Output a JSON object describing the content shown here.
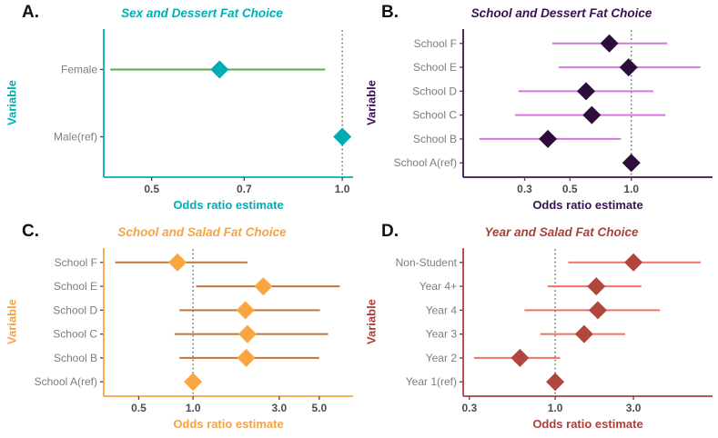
{
  "figure": {
    "background": "#ffffff"
  },
  "text_colors": {
    "panel_letter": "#111111",
    "category_label": "#7d7d7d",
    "tick_label": "#4d4d4d",
    "tick_mark": "#4a4a4a",
    "ref_line": "#6e6e6e"
  },
  "chart_data": [
    {
      "key": "a",
      "type": "scatter",
      "variant": "forest-plot-odds-ratio",
      "panel_label": "A.",
      "title": "Sex and Dessert Fat Choice",
      "xlabel": "Odds ratio estimate",
      "ylabel": "Variable",
      "x_scale": "log",
      "x_domain": [
        0.42,
        1.04
      ],
      "x_ticks": [
        0.5,
        0.7,
        1.0
      ],
      "ref_line_x": 1.0,
      "grid": false,
      "legend": "none",
      "colors": {
        "accent": "#00AFB6",
        "diamond": "#00ADB3",
        "ci": "#57AD4C",
        "axis": "#00AFB6"
      },
      "rows": [
        {
          "label": "Female",
          "or": 0.64,
          "ci_low": 0.43,
          "ci_high": 0.94,
          "is_ref": false
        },
        {
          "label": "Male(ref)",
          "or": 1.0,
          "ci_low": null,
          "ci_high": null,
          "is_ref": true
        }
      ]
    },
    {
      "key": "b",
      "type": "scatter",
      "variant": "forest-plot-odds-ratio",
      "panel_label": "B.",
      "title": "School and Dessert Fat Choice",
      "xlabel": "Odds ratio estimate",
      "ylabel": "Variable",
      "x_scale": "log",
      "x_domain": [
        0.15,
        2.5
      ],
      "x_ticks": [
        0.3,
        0.5,
        1.0
      ],
      "ref_line_x": 1.0,
      "grid": false,
      "legend": "none",
      "colors": {
        "accent": "#3A1150",
        "diamond": "#2E0D3D",
        "ci": "#D379DC",
        "axis": "#3A1150"
      },
      "rows": [
        {
          "label": "School F",
          "or": 0.78,
          "ci_low": 0.41,
          "ci_high": 1.5,
          "is_ref": false
        },
        {
          "label": "School E",
          "or": 0.97,
          "ci_low": 0.44,
          "ci_high": 2.18,
          "is_ref": false
        },
        {
          "label": "School D",
          "or": 0.6,
          "ci_low": 0.28,
          "ci_high": 1.28,
          "is_ref": false
        },
        {
          "label": "School C",
          "or": 0.64,
          "ci_low": 0.27,
          "ci_high": 1.47,
          "is_ref": false
        },
        {
          "label": "School B",
          "or": 0.39,
          "ci_low": 0.18,
          "ci_high": 0.89,
          "is_ref": false
        },
        {
          "label": "School A(ref)",
          "or": 1.0,
          "ci_low": null,
          "ci_high": null,
          "is_ref": true
        }
      ]
    },
    {
      "key": "c",
      "type": "scatter",
      "variant": "forest-plot-odds-ratio",
      "panel_label": "C.",
      "title": "School and Salad Fat Choice",
      "xlabel": "Odds ratio estimate",
      "ylabel": "Variable",
      "x_scale": "log",
      "x_domain": [
        0.32,
        7.7
      ],
      "x_ticks": [
        0.5,
        1.0,
        3.0,
        5.0
      ],
      "ref_line_x": 1.0,
      "grid": false,
      "legend": "none",
      "colors": {
        "accent": "#F9A242",
        "diamond": "#FAA53F",
        "ci": "#C3763B",
        "axis": "#F9A242"
      },
      "rows": [
        {
          "label": "School F",
          "or": 0.82,
          "ci_low": 0.37,
          "ci_high": 2.0,
          "is_ref": false
        },
        {
          "label": "School E",
          "or": 2.45,
          "ci_low": 1.04,
          "ci_high": 6.5,
          "is_ref": false
        },
        {
          "label": "School D",
          "or": 1.95,
          "ci_low": 0.84,
          "ci_high": 5.05,
          "is_ref": false
        },
        {
          "label": "School C",
          "or": 2.0,
          "ci_low": 0.79,
          "ci_high": 5.6,
          "is_ref": false
        },
        {
          "label": "School B",
          "or": 1.97,
          "ci_low": 0.84,
          "ci_high": 5.0,
          "is_ref": false
        },
        {
          "label": "School A(ref)",
          "or": 1.0,
          "ci_low": null,
          "ci_high": null,
          "is_ref": true
        }
      ]
    },
    {
      "key": "d",
      "type": "scatter",
      "variant": "forest-plot-odds-ratio",
      "panel_label": "D.",
      "title": "Year and Salad Fat Choice",
      "xlabel": "Odds ratio estimate",
      "ylabel": "Variable",
      "x_scale": "log",
      "x_domain": [
        0.275,
        9.1
      ],
      "x_ticks": [
        0.3,
        1.0,
        3.0
      ],
      "ref_line_x": 1.0,
      "grid": false,
      "legend": "none",
      "colors": {
        "accent": "#AC4039",
        "diamond": "#B2453D",
        "ci": "#F07265",
        "axis": "#AC4039"
      },
      "rows": [
        {
          "label": "Non-Student",
          "or": 3.0,
          "ci_low": 1.2,
          "ci_high": 7.7,
          "is_ref": false
        },
        {
          "label": "Year 4+",
          "or": 1.78,
          "ci_low": 0.9,
          "ci_high": 3.35,
          "is_ref": false
        },
        {
          "label": "Year 4",
          "or": 1.82,
          "ci_low": 0.65,
          "ci_high": 4.35,
          "is_ref": false
        },
        {
          "label": "Year 3",
          "or": 1.5,
          "ci_low": 0.81,
          "ci_high": 2.67,
          "is_ref": false
        },
        {
          "label": "Year 2",
          "or": 0.61,
          "ci_low": 0.32,
          "ci_high": 1.07,
          "is_ref": false
        },
        {
          "label": "Year 1(ref)",
          "or": 1.0,
          "ci_low": null,
          "ci_high": null,
          "is_ref": true
        }
      ]
    }
  ]
}
